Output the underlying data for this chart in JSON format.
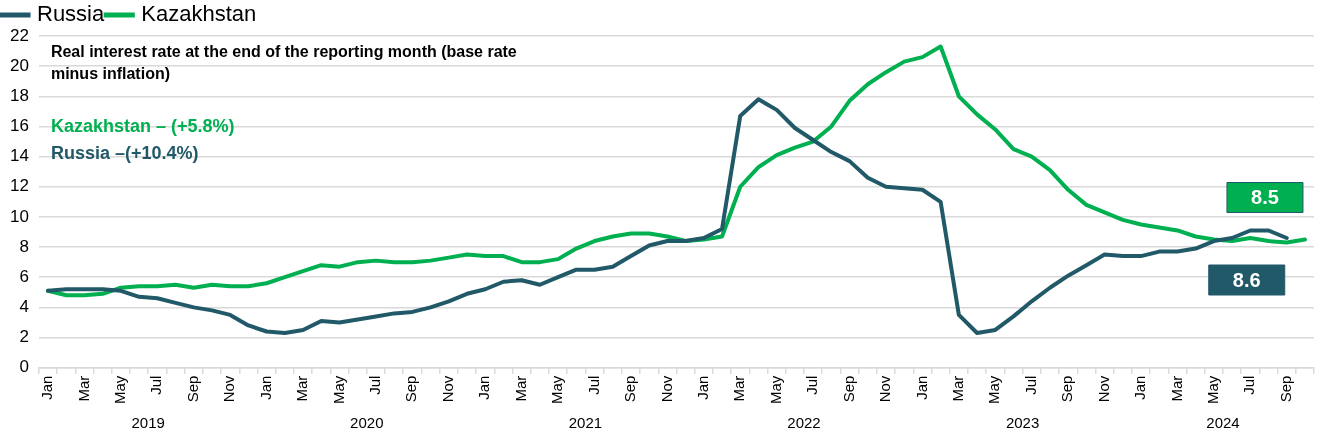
{
  "chart_data": {
    "type": "line",
    "title": "Real interest rate at the end of the reporting month (base rate minus inflation)",
    "categories": [
      "Jan",
      null,
      "Mar",
      null,
      "May",
      null,
      "Jul",
      null,
      "Sep",
      null,
      "Nov",
      null,
      "Jan",
      null,
      "Mar",
      null,
      "May",
      null,
      "Jul",
      null,
      "Sep",
      null,
      "Nov",
      null,
      "Jan",
      null,
      "Mar",
      null,
      "May",
      null,
      "Jul",
      null,
      "Sep",
      null,
      "Nov",
      null,
      "Jan",
      null,
      "Mar",
      null,
      "May",
      null,
      "Jul",
      null,
      "Sep",
      null,
      "Nov",
      null,
      "Jan",
      null,
      "Mar",
      null,
      "May",
      null,
      "Jul",
      null,
      "Sep",
      null,
      "Nov",
      null,
      "Jan",
      null,
      "Mar",
      null,
      "May",
      null,
      "Jul",
      null,
      "Sep",
      null
    ],
    "series": [
      {
        "name": "Russia",
        "color": "#215968",
        "values": [
          5.1,
          5.2,
          5.2,
          5.2,
          5.1,
          4.7,
          4.6,
          4.3,
          4.0,
          3.8,
          3.5,
          2.8,
          2.4,
          2.3,
          2.5,
          3.1,
          3.0,
          3.2,
          3.4,
          3.6,
          3.7,
          4.0,
          4.4,
          4.9,
          5.2,
          5.7,
          5.8,
          5.5,
          6.0,
          6.5,
          6.5,
          6.7,
          7.4,
          8.1,
          8.4,
          8.4,
          8.6,
          9.2,
          16.7,
          17.8,
          17.1,
          15.9,
          15.1,
          14.3,
          13.7,
          12.6,
          12.0,
          11.9,
          11.8,
          11.0,
          3.5,
          2.3,
          2.5,
          3.4,
          4.4,
          5.3,
          6.1,
          6.8,
          7.5,
          7.4,
          7.4,
          7.7,
          7.7,
          7.9,
          8.4,
          8.6,
          9.1,
          9.1,
          8.6,
          null
        ],
        "value_labels": [
          null,
          null,
          null,
          null,
          null,
          null,
          null,
          null,
          null,
          null,
          null,
          null,
          null,
          null,
          null,
          null,
          null,
          null,
          null,
          null,
          null,
          null,
          null,
          null,
          null,
          null,
          null,
          null,
          null,
          null,
          null,
          null,
          null,
          null,
          null,
          null,
          null,
          null,
          null,
          null,
          null,
          null,
          null,
          null,
          null,
          null,
          null,
          null,
          null,
          null,
          null,
          null,
          null,
          null,
          null,
          null,
          null,
          null,
          null,
          null,
          null,
          null,
          null,
          null,
          null,
          null,
          null,
          null,
          "8.6",
          null
        ]
      },
      {
        "name": "Kazakhstan",
        "color": "#00b050",
        "values": [
          5.1,
          4.8,
          4.8,
          4.9,
          5.3,
          5.4,
          5.4,
          5.5,
          5.3,
          5.5,
          5.4,
          5.4,
          5.6,
          6.0,
          6.4,
          6.8,
          6.7,
          7.0,
          7.1,
          7.0,
          7.0,
          7.1,
          7.3,
          7.5,
          7.4,
          7.4,
          7.0,
          7.0,
          7.2,
          7.9,
          8.4,
          8.7,
          8.9,
          8.9,
          8.7,
          8.4,
          8.5,
          8.7,
          12.0,
          13.3,
          14.1,
          14.6,
          15.0,
          16.0,
          17.7,
          18.8,
          19.6,
          20.3,
          20.6,
          21.3,
          18.0,
          16.8,
          15.8,
          14.5,
          14.0,
          13.1,
          11.8,
          10.8,
          10.3,
          9.8,
          9.5,
          9.3,
          9.1,
          8.7,
          8.5,
          8.4,
          8.6,
          8.4,
          8.3,
          8.5
        ],
        "value_labels": [
          null,
          null,
          null,
          null,
          null,
          null,
          null,
          null,
          null,
          null,
          null,
          null,
          null,
          null,
          null,
          null,
          null,
          null,
          null,
          null,
          null,
          null,
          null,
          null,
          null,
          null,
          null,
          null,
          null,
          null,
          null,
          null,
          null,
          null,
          null,
          null,
          null,
          null,
          null,
          null,
          null,
          null,
          null,
          null,
          null,
          null,
          null,
          null,
          null,
          null,
          null,
          null,
          null,
          null,
          null,
          null,
          null,
          null,
          null,
          null,
          null,
          null,
          null,
          null,
          null,
          null,
          null,
          null,
          null,
          "8.5"
        ]
      }
    ],
    "annotations": [
      "Kazakhstan – (+5.8%)",
      "Russia –(+10.4%)",
      "2019",
      "2020",
      "2021",
      "2022",
      "2023",
      "2024"
    ],
    "ylim": [
      0,
      22
    ],
    "yticks": [
      0,
      2,
      4,
      6,
      8,
      10,
      12,
      14,
      16,
      18,
      20,
      22
    ],
    "grid": "y",
    "legend": "top left",
    "marker": "none",
    "line_style": "solid"
  }
}
